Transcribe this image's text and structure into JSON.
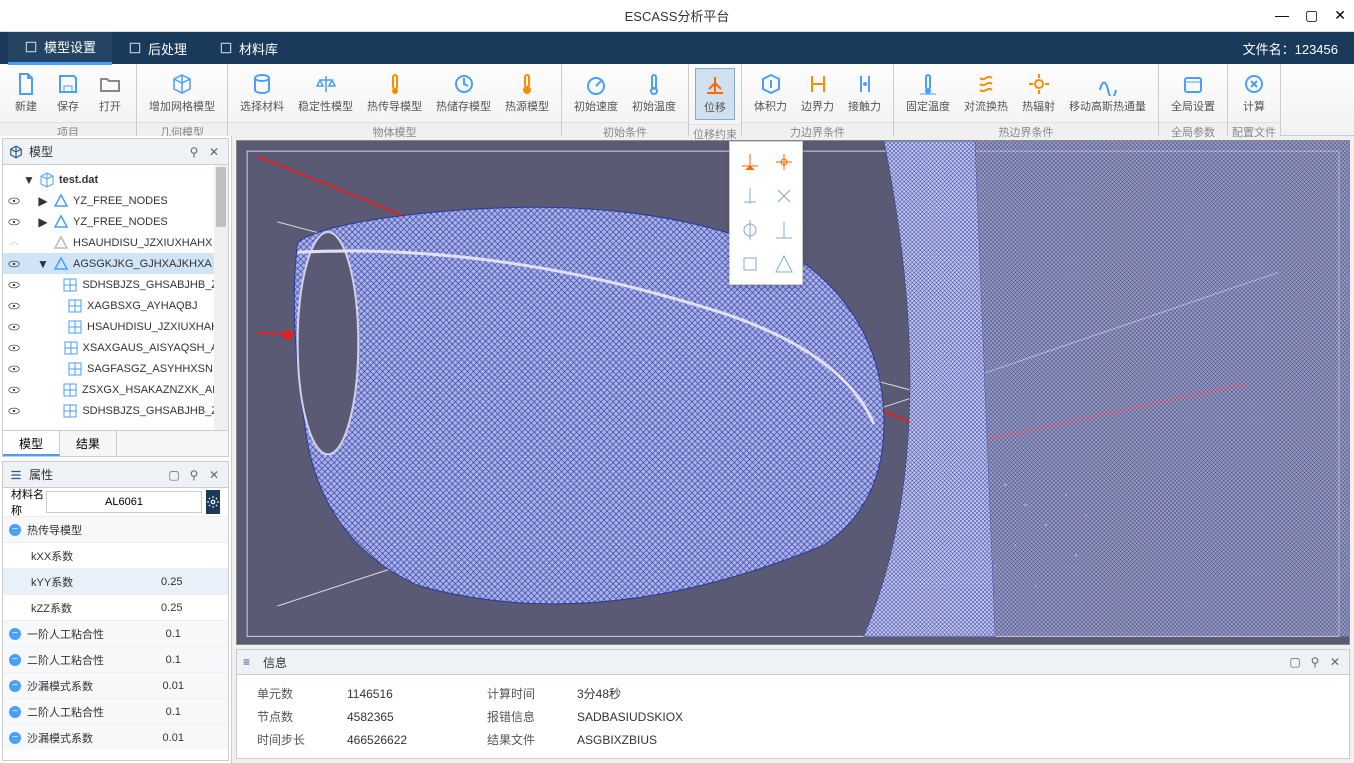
{
  "titlebar": {
    "title": "ESCASS分析平台"
  },
  "menubar": {
    "items": [
      {
        "label": "模型设置",
        "active": true
      },
      {
        "label": "后处理",
        "active": false
      },
      {
        "label": "材料库",
        "active": false
      }
    ],
    "filename_label": "文件名：123456"
  },
  "ribbon": {
    "groups": [
      {
        "label": "项目",
        "buttons": [
          {
            "label": "新建",
            "icon": "file-new",
            "color": "#4a9eff"
          },
          {
            "label": "保存",
            "icon": "save",
            "color": "#4a9eff"
          },
          {
            "label": "打开",
            "icon": "folder-open",
            "color": "#888"
          }
        ]
      },
      {
        "label": "几何模型",
        "buttons": [
          {
            "label": "增加网格模型",
            "icon": "cube-mesh",
            "color": "#4a9eff"
          }
        ]
      },
      {
        "label": "物体模型",
        "buttons": [
          {
            "label": "选择材料",
            "icon": "database",
            "color": "#4a9eff"
          },
          {
            "label": "稳定性模型",
            "icon": "balance",
            "color": "#4a9eff"
          },
          {
            "label": "热传导模型",
            "icon": "thermo-cond",
            "color": "#ff8c00"
          },
          {
            "label": "热储存模型",
            "icon": "thermo-store",
            "color": "#4a9eff"
          },
          {
            "label": "热源模型",
            "icon": "thermo-source",
            "color": "#ff8c00"
          }
        ]
      },
      {
        "label": "初始条件",
        "buttons": [
          {
            "label": "初始速度",
            "icon": "gauge",
            "color": "#4a9eff"
          },
          {
            "label": "初始温度",
            "icon": "thermo-init",
            "color": "#4a9eff"
          }
        ]
      },
      {
        "label": "位移约束",
        "buttons": [
          {
            "label": "位移",
            "icon": "constraint",
            "color": "#ff6600",
            "active": true
          }
        ]
      },
      {
        "label": "力边界条件",
        "buttons": [
          {
            "label": "体积力",
            "icon": "body-force",
            "color": "#4a9eff"
          },
          {
            "label": "边界力",
            "icon": "boundary-force",
            "color": "#ff8c00"
          },
          {
            "label": "接触力",
            "icon": "contact-force",
            "color": "#4a9eff"
          }
        ]
      },
      {
        "label": "热边界条件",
        "buttons": [
          {
            "label": "固定温度",
            "icon": "fixed-temp",
            "color": "#4a9eff"
          },
          {
            "label": "对流换热",
            "icon": "convection",
            "color": "#ff8c00"
          },
          {
            "label": "热辐射",
            "icon": "radiation",
            "color": "#ff8c00"
          },
          {
            "label": "移动高斯热通量",
            "icon": "gauss-flux",
            "color": "#4a9eff"
          }
        ]
      },
      {
        "label": "全局参数",
        "buttons": [
          {
            "label": "全局设置",
            "icon": "global",
            "color": "#4a9eff"
          }
        ]
      },
      {
        "label": "配置文件",
        "buttons": [
          {
            "label": "计算",
            "icon": "calc",
            "color": "#4a9eff"
          }
        ]
      }
    ]
  },
  "tree": {
    "title": "模型",
    "root": "test.dat",
    "nodes": [
      {
        "label": "YZ_FREE_NODES",
        "indent": 1,
        "icon": "tri",
        "eye": true,
        "caret": "▶"
      },
      {
        "label": "YZ_FREE_NODES",
        "indent": 1,
        "icon": "tri",
        "eye": true,
        "caret": "▶"
      },
      {
        "label": "HSAUHDISU_JZXIUXHAHX",
        "indent": 1,
        "icon": "tri-dim",
        "eye": false,
        "caret": ""
      },
      {
        "label": "AGSGKJKG_GJHXAJKHXA",
        "indent": 1,
        "icon": "tri",
        "eye": true,
        "caret": "▼",
        "selected": true
      },
      {
        "label": "SDHSBJZS_GHSABJHB_ZAHU",
        "indent": 2,
        "icon": "mesh",
        "eye": true
      },
      {
        "label": "XAGBSXG_AYHAQBJ",
        "indent": 2,
        "icon": "mesh",
        "eye": true
      },
      {
        "label": "HSAUHDISU_JZXIUXHAHX",
        "indent": 2,
        "icon": "mesh",
        "eye": true
      },
      {
        "label": "XSAXGAUS_AISYAQSH_ASHX",
        "indent": 2,
        "icon": "mesh",
        "eye": true
      },
      {
        "label": "SAGFASGZ_ASYHHXSN",
        "indent": 2,
        "icon": "mesh",
        "eye": true
      },
      {
        "label": "ZSXGX_HSAKAZNZXK_AHASX",
        "indent": 2,
        "icon": "mesh",
        "eye": true
      },
      {
        "label": "SDHSBJZS_GHSABJHB_ZAHU",
        "indent": 2,
        "icon": "mesh",
        "eye": true
      }
    ],
    "tabs": [
      {
        "label": "模型",
        "active": true
      },
      {
        "label": "结果",
        "active": false
      }
    ]
  },
  "properties": {
    "title": "属性",
    "material_label": "材料名称",
    "material_value": "AL6061",
    "rows": [
      {
        "type": "section",
        "label": "热传导模型"
      },
      {
        "type": "kv",
        "label": "kXX系数",
        "value": ""
      },
      {
        "type": "kv",
        "label": "kYY系数",
        "value": "0.25",
        "highlight": true
      },
      {
        "type": "kv",
        "label": "kZZ系数",
        "value": "0.25"
      },
      {
        "type": "section",
        "label": "一阶人工粘合性",
        "value": "0.1"
      },
      {
        "type": "section",
        "label": "二阶人工粘合性",
        "value": "0.1"
      },
      {
        "type": "section",
        "label": "沙漏模式系数",
        "value": "0.01"
      },
      {
        "type": "section",
        "label": "二阶人工粘合性",
        "value": "0.1"
      },
      {
        "type": "section",
        "label": "沙漏模式系数",
        "value": "0.01"
      }
    ]
  },
  "info": {
    "title": "信息",
    "rows": [
      {
        "l1": "单元数",
        "v1": "1146516",
        "l2": "计算时间",
        "v2": "3分48秒"
      },
      {
        "l1": "节点数",
        "v1": "4582365",
        "l2": "报错信息",
        "v2": "SADBASIUDSKIOX"
      },
      {
        "l1": "时间步长",
        "v1": "466526622",
        "l2": "结果文件",
        "v2": "ASGBIXZBIUS"
      }
    ]
  },
  "viewport": {
    "background": "#5a5a74",
    "mesh_color": "#2a3a9e",
    "line_color": "#e02020",
    "frame_color": "#d8d8d8"
  }
}
